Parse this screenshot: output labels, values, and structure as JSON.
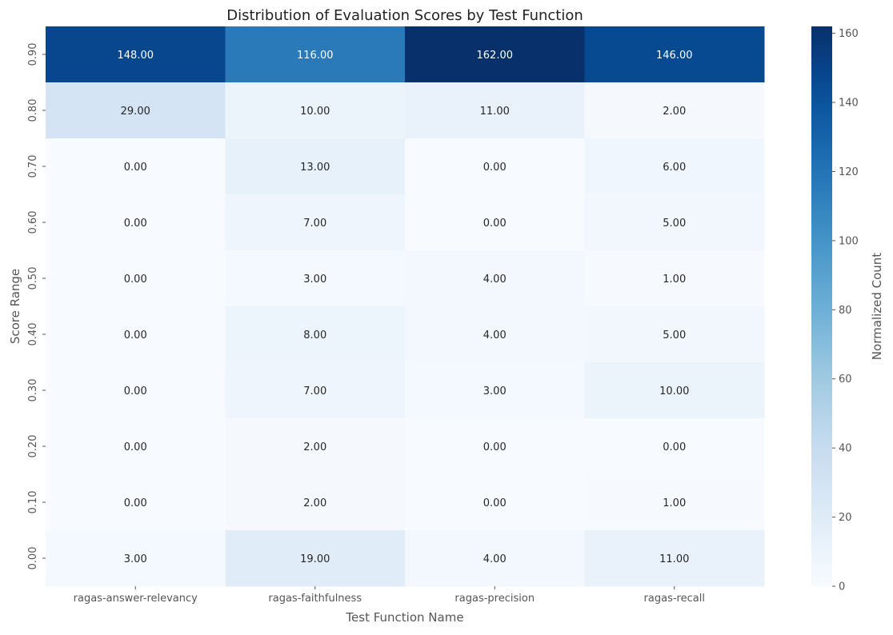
{
  "chart_data": {
    "type": "heatmap",
    "title": "Distribution of Evaluation Scores by Test Function",
    "xlabel": "Test Function Name",
    "ylabel": "Score Range",
    "x_categories": [
      "ragas-answer-relevancy",
      "ragas-faithfulness",
      "ragas-precision",
      "ragas-recall"
    ],
    "y_categories": [
      "0.90",
      "0.80",
      "0.70",
      "0.60",
      "0.50",
      "0.40",
      "0.30",
      "0.20",
      "0.10",
      "0.00"
    ],
    "values": [
      [
        148,
        116,
        162,
        146
      ],
      [
        29,
        10,
        11,
        2
      ],
      [
        0,
        13,
        0,
        6
      ],
      [
        0,
        7,
        0,
        5
      ],
      [
        0,
        3,
        4,
        1
      ],
      [
        0,
        8,
        4,
        5
      ],
      [
        0,
        7,
        3,
        10
      ],
      [
        0,
        2,
        0,
        0
      ],
      [
        0,
        2,
        0,
        1
      ],
      [
        3,
        19,
        4,
        11
      ]
    ],
    "value_format": "fixed-2",
    "colorbar": {
      "label": "Normalized Count",
      "min": 0,
      "max": 162,
      "ticks": [
        0,
        20,
        40,
        60,
        80,
        100,
        120,
        140,
        160
      ],
      "colormap": "Blues"
    },
    "grid": false
  }
}
